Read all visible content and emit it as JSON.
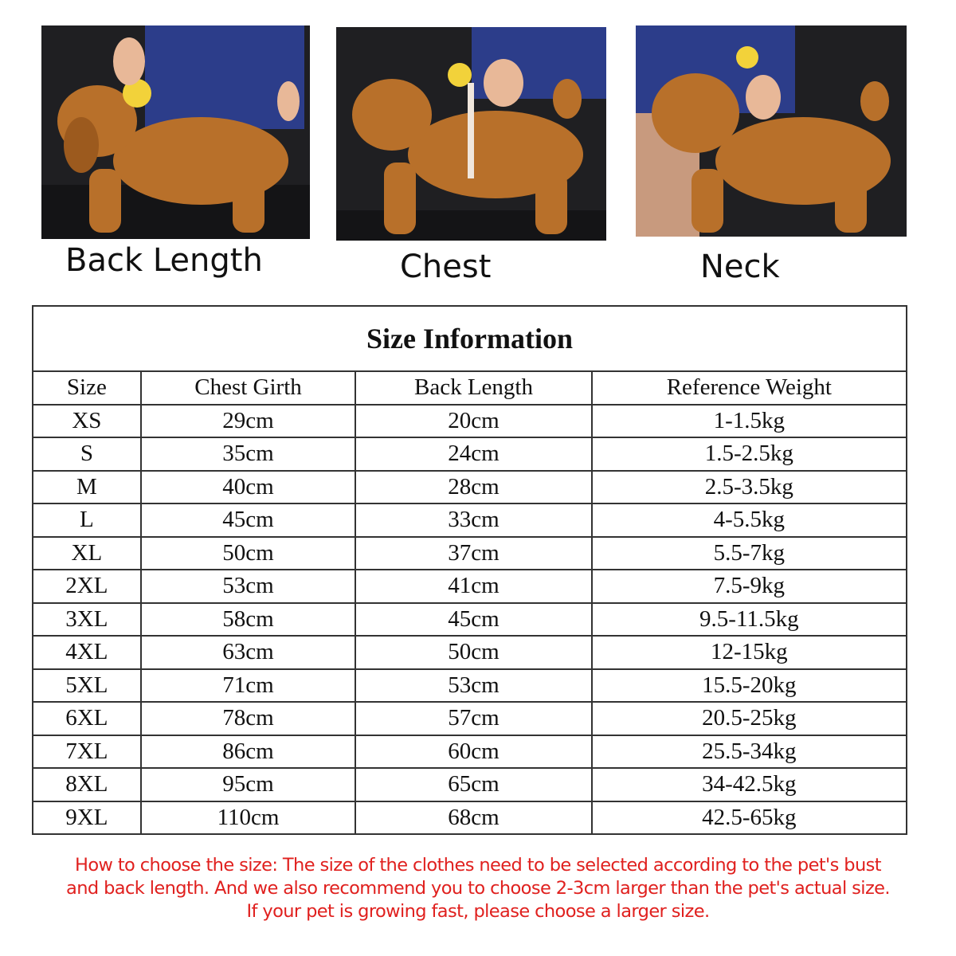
{
  "photos": [
    {
      "caption": "Back Length"
    },
    {
      "caption": "Chest"
    },
    {
      "caption": "Neck"
    }
  ],
  "table": {
    "title": "Size Information",
    "headers": [
      "Size",
      "Chest Girth",
      "Back Length",
      "Reference Weight"
    ],
    "rows": [
      [
        "XS",
        "29cm",
        "20cm",
        "1-1.5kg"
      ],
      [
        "S",
        "35cm",
        "24cm",
        "1.5-2.5kg"
      ],
      [
        "M",
        "40cm",
        "28cm",
        "2.5-3.5kg"
      ],
      [
        "L",
        "45cm",
        "33cm",
        "4-5.5kg"
      ],
      [
        "XL",
        "50cm",
        "37cm",
        "5.5-7kg"
      ],
      [
        "2XL",
        "53cm",
        "41cm",
        "7.5-9kg"
      ],
      [
        "3XL",
        "58cm",
        "45cm",
        "9.5-11.5kg"
      ],
      [
        "4XL",
        "63cm",
        "50cm",
        "12-15kg"
      ],
      [
        "5XL",
        "71cm",
        "53cm",
        "15.5-20kg"
      ],
      [
        "6XL",
        "78cm",
        "57cm",
        "20.5-25kg"
      ],
      [
        "7XL",
        "86cm",
        "60cm",
        "25.5-34kg"
      ],
      [
        "8XL",
        "95cm",
        "65cm",
        "34-42.5kg"
      ],
      [
        "9XL",
        "110cm",
        "68cm",
        "42.5-65kg"
      ]
    ]
  },
  "note": {
    "lines": [
      "How to choose the size: The size of the clothes need to be selected according to the pet's bust",
      "and back length. And we also recommend you to choose 2-3cm larger than the pet's actual size.",
      "If your pet is growing fast, please choose a larger size."
    ],
    "color": "#e0201e"
  },
  "colors": {
    "dog_fur": "#b8702a",
    "background": "#2a2a2e",
    "jeans": "#2c3d8a"
  }
}
